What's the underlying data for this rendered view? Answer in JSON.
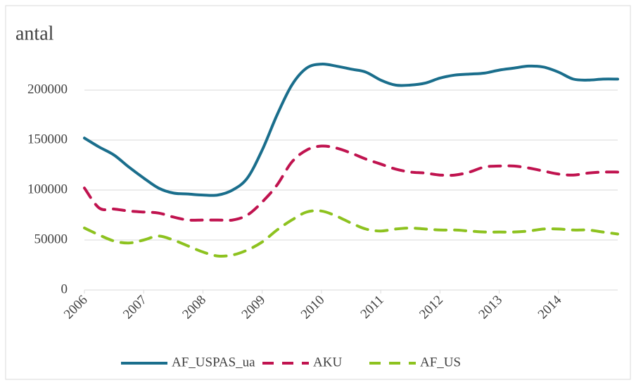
{
  "chart_data": {
    "type": "line",
    "title": "antal",
    "x": [
      2006,
      2006.25,
      2006.5,
      2006.75,
      2007,
      2007.25,
      2007.5,
      2007.75,
      2008,
      2008.25,
      2008.5,
      2008.75,
      2009,
      2009.25,
      2009.5,
      2009.75,
      2010,
      2010.25,
      2010.5,
      2010.75,
      2011,
      2011.25,
      2011.5,
      2011.75,
      2012,
      2012.25,
      2012.5,
      2012.75,
      2013,
      2013.25,
      2013.5,
      2013.75,
      2014,
      2014.25,
      2014.5,
      2014.75,
      2015
    ],
    "series": [
      {
        "name": "AF_USPAS_ua",
        "color": "#1a6e8c",
        "dash": "solid",
        "values": [
          152000,
          143000,
          135000,
          123000,
          112000,
          102000,
          97000,
          96000,
          95000,
          95000,
          100000,
          112000,
          140000,
          175000,
          205000,
          222000,
          226000,
          224000,
          221000,
          218000,
          210000,
          205000,
          205000,
          207000,
          212000,
          215000,
          216000,
          217000,
          220000,
          222000,
          224000,
          223000,
          218000,
          211000,
          210000,
          211000,
          211000
        ]
      },
      {
        "name": "AKU",
        "color": "#c0134f",
        "dash": "dashed",
        "values": [
          102000,
          82000,
          81000,
          79000,
          78000,
          77000,
          73000,
          70000,
          70000,
          70000,
          70000,
          75000,
          88000,
          105000,
          128000,
          140000,
          144000,
          142000,
          137000,
          131000,
          126000,
          121000,
          118000,
          117000,
          115000,
          115000,
          118000,
          123000,
          124000,
          124000,
          122000,
          119000,
          116000,
          115000,
          117000,
          118000,
          118000
        ]
      },
      {
        "name": "AF_US",
        "color": "#8dc21f",
        "dash": "dashed",
        "values": [
          62000,
          55000,
          49000,
          47000,
          50000,
          54000,
          50000,
          44000,
          38000,
          34000,
          35000,
          40000,
          48000,
          60000,
          70000,
          78000,
          79000,
          74000,
          67000,
          61000,
          59000,
          61000,
          62000,
          61000,
          60000,
          60000,
          59000,
          58000,
          58000,
          58000,
          59000,
          61000,
          61000,
          60000,
          60000,
          58000,
          56000
        ]
      }
    ],
    "xlim": [
      2006,
      2015
    ],
    "xticks": [
      2006,
      2007,
      2008,
      2009,
      2010,
      2011,
      2012,
      2013,
      2014
    ],
    "ylim": [
      0,
      200000
    ],
    "yticks": [
      0,
      50000,
      100000,
      150000,
      200000
    ],
    "grid": true,
    "legend": "bottom"
  }
}
